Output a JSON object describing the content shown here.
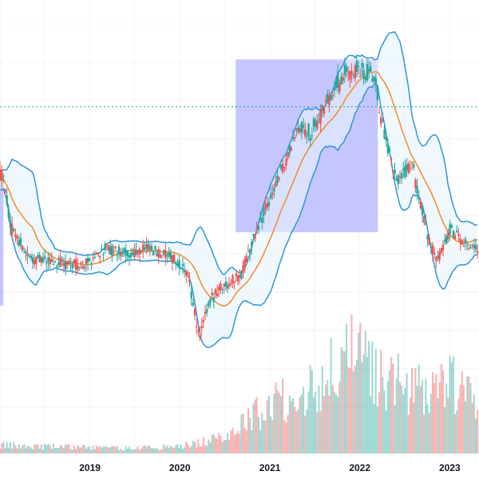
{
  "chart_data": {
    "type": "candlestick",
    "title": "",
    "xlabel": "",
    "ylabel": "",
    "x_ticks": [
      "2019",
      "2020",
      "2021",
      "2022",
      "2023"
    ],
    "x_range": [
      "2018-01-01",
      "2023-04-30"
    ],
    "grid": true,
    "indicators": [
      "Bollinger Bands",
      "Moving Average"
    ],
    "price_anchors": [
      {
        "date": "2018-01-15",
        "price": 0.92
      },
      {
        "date": "2018-02-10",
        "price": 0.7
      },
      {
        "date": "2018-05-01",
        "price": 0.56
      },
      {
        "date": "2018-09-01",
        "price": 0.54
      },
      {
        "date": "2018-12-01",
        "price": 0.53
      },
      {
        "date": "2019-03-01",
        "price": 0.6
      },
      {
        "date": "2019-06-01",
        "price": 0.58
      },
      {
        "date": "2019-09-01",
        "price": 0.6
      },
      {
        "date": "2019-12-01",
        "price": 0.56
      },
      {
        "date": "2020-02-01",
        "price": 0.5
      },
      {
        "date": "2020-03-20",
        "price": 0.22
      },
      {
        "date": "2020-05-01",
        "price": 0.38
      },
      {
        "date": "2020-07-01",
        "price": 0.45
      },
      {
        "date": "2020-09-01",
        "price": 0.48
      },
      {
        "date": "2020-11-01",
        "price": 0.66
      },
      {
        "date": "2021-01-15",
        "price": 0.85
      },
      {
        "date": "2021-03-01",
        "price": 0.95
      },
      {
        "date": "2021-05-01",
        "price": 1.12
      },
      {
        "date": "2021-06-15",
        "price": 1.08
      },
      {
        "date": "2021-08-01",
        "price": 1.18
      },
      {
        "date": "2021-10-01",
        "price": 1.3
      },
      {
        "date": "2021-12-01",
        "price": 1.36
      },
      {
        "date": "2022-03-01",
        "price": 1.32
      },
      {
        "date": "2022-04-15",
        "price": 1.05
      },
      {
        "date": "2022-06-01",
        "price": 0.88
      },
      {
        "date": "2022-08-01",
        "price": 0.96
      },
      {
        "date": "2022-10-01",
        "price": 0.66
      },
      {
        "date": "2022-11-15",
        "price": 0.55
      },
      {
        "date": "2023-01-01",
        "price": 0.68
      },
      {
        "date": "2023-04-15",
        "price": 0.6
      }
    ],
    "volume_anchors": [
      {
        "date": "2018-01-15",
        "volume": 0.08
      },
      {
        "date": "2019-06-01",
        "volume": 0.05
      },
      {
        "date": "2020-01-01",
        "volume": 0.07
      },
      {
        "date": "2020-06-01",
        "volume": 0.14
      },
      {
        "date": "2021-01-15",
        "volume": 0.5
      },
      {
        "date": "2021-06-01",
        "volume": 0.62
      },
      {
        "date": "2021-12-01",
        "volume": 0.95
      },
      {
        "date": "2022-03-01",
        "volume": 0.8
      },
      {
        "date": "2022-08-01",
        "volume": 0.6
      },
      {
        "date": "2023-01-01",
        "volume": 0.7
      },
      {
        "date": "2023-04-15",
        "volume": 0.5
      }
    ],
    "highlight_ranges": [
      {
        "start": "2017-09-01",
        "end": "2018-01-15",
        "price_low": 0.36,
        "price_high": 0.92
      },
      {
        "start": "2020-08-15",
        "end": "2022-03-15",
        "price_low": 0.67,
        "price_high": 1.4
      }
    ],
    "reference_price": 1.2,
    "colors": {
      "up": "#26a69a",
      "down": "#ef5350",
      "bands": "#2f95d6",
      "band_fill": "#e6f3fb",
      "ma": "#f28c28",
      "highlight": "#b1b3ff",
      "reference_line": "#26a69a",
      "grid": "#f0f3fa"
    }
  }
}
